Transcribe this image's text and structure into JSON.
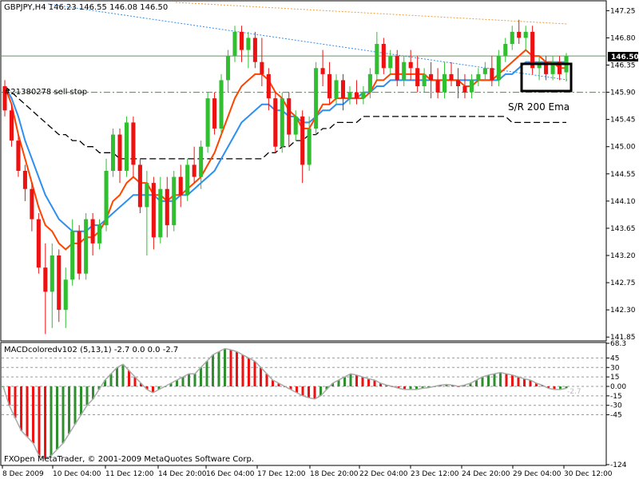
{
  "header": {
    "symbol_line": "GBPJPY,H4  146.23 146.55 146.08 146.50",
    "order_label": "#21380278 sell stop"
  },
  "annotation": {
    "text": "S/R 200 Ema"
  },
  "footer": {
    "copyright": "FXOpen MetaTrader, © 2001-2009 MetaQuotes Software Corp."
  },
  "colors": {
    "bull": "#2fbf2f",
    "bear": "#ee1111",
    "ema_orange": "#ff4400",
    "ema_blue": "#2f8fef",
    "ema_black": "#000000",
    "sell_stop_line": "#22aa22",
    "price_line": "#6b8e6b",
    "dotted_blue": "#2f8fef",
    "dotted_orange": "#e8a040"
  },
  "chart_data": [
    {
      "type": "candlestick",
      "title": "GBPJPY,H4",
      "ohlc_last": {
        "open": 146.23,
        "high": 146.55,
        "low": 146.08,
        "close": 146.5
      },
      "current_price": 146.5,
      "sell_stop_price": 145.9,
      "ylim": [
        141.8,
        147.4
      ],
      "yticks": [
        "147.25",
        "146.80",
        "146.35",
        "145.90",
        "145.45",
        "145.00",
        "144.55",
        "144.10",
        "143.65",
        "143.20",
        "142.75",
        "142.30",
        "141.85"
      ],
      "current_price_label": "146.50",
      "xticks": [
        "8 Dec 2009",
        "10 Dec 04:00",
        "11 Dec 12:00",
        "14 Dec 20:00",
        "16 Dec 04:00",
        "17 Dec 12:00",
        "18 Dec 20:00",
        "22 Dec 04:00",
        "23 Dec 12:00",
        "24 Dec 20:00",
        "29 Dec 04:00",
        "30 Dec 12:00"
      ],
      "candles": [
        {
          "o": 146.0,
          "h": 146.1,
          "l": 145.5,
          "c": 145.6
        },
        {
          "o": 145.6,
          "h": 145.7,
          "l": 145.0,
          "c": 145.1
        },
        {
          "o": 145.1,
          "h": 145.2,
          "l": 144.5,
          "c": 144.6
        },
        {
          "o": 144.6,
          "h": 144.7,
          "l": 144.1,
          "c": 144.3
        },
        {
          "o": 144.3,
          "h": 144.4,
          "l": 143.6,
          "c": 143.8
        },
        {
          "o": 143.8,
          "h": 143.9,
          "l": 142.9,
          "c": 143.0
        },
        {
          "o": 143.0,
          "h": 143.4,
          "l": 141.9,
          "c": 142.6
        },
        {
          "o": 142.6,
          "h": 143.4,
          "l": 142.0,
          "c": 143.2
        },
        {
          "o": 143.2,
          "h": 143.3,
          "l": 142.1,
          "c": 142.3
        },
        {
          "o": 142.3,
          "h": 143.0,
          "l": 142.0,
          "c": 142.8
        },
        {
          "o": 142.8,
          "h": 143.8,
          "l": 142.7,
          "c": 143.6
        },
        {
          "o": 143.6,
          "h": 143.7,
          "l": 142.8,
          "c": 142.9
        },
        {
          "o": 142.9,
          "h": 143.9,
          "l": 142.8,
          "c": 143.8
        },
        {
          "o": 143.8,
          "h": 143.9,
          "l": 143.2,
          "c": 143.4
        },
        {
          "o": 143.4,
          "h": 143.8,
          "l": 143.3,
          "c": 143.7
        },
        {
          "o": 143.7,
          "h": 144.8,
          "l": 143.6,
          "c": 144.6
        },
        {
          "o": 144.6,
          "h": 145.3,
          "l": 144.5,
          "c": 145.2
        },
        {
          "o": 145.2,
          "h": 145.3,
          "l": 144.4,
          "c": 144.6
        },
        {
          "o": 144.6,
          "h": 145.5,
          "l": 144.5,
          "c": 145.4
        },
        {
          "o": 145.4,
          "h": 145.5,
          "l": 144.5,
          "c": 144.7
        },
        {
          "o": 144.7,
          "h": 144.8,
          "l": 143.9,
          "c": 144.0
        },
        {
          "o": 144.0,
          "h": 144.6,
          "l": 143.2,
          "c": 144.4
        },
        {
          "o": 144.4,
          "h": 144.5,
          "l": 143.3,
          "c": 143.5
        },
        {
          "o": 143.5,
          "h": 144.5,
          "l": 143.4,
          "c": 144.3
        },
        {
          "o": 144.3,
          "h": 144.5,
          "l": 143.5,
          "c": 143.7
        },
        {
          "o": 143.7,
          "h": 144.6,
          "l": 143.6,
          "c": 144.5
        },
        {
          "o": 144.5,
          "h": 144.7,
          "l": 144.0,
          "c": 144.2
        },
        {
          "o": 144.2,
          "h": 144.8,
          "l": 144.1,
          "c": 144.7
        },
        {
          "o": 144.7,
          "h": 145.0,
          "l": 144.4,
          "c": 144.5
        },
        {
          "o": 144.5,
          "h": 145.1,
          "l": 144.3,
          "c": 145.0
        },
        {
          "o": 145.0,
          "h": 145.9,
          "l": 144.9,
          "c": 145.8
        },
        {
          "o": 145.8,
          "h": 145.9,
          "l": 145.2,
          "c": 145.3
        },
        {
          "o": 145.3,
          "h": 146.2,
          "l": 145.2,
          "c": 146.1
        },
        {
          "o": 146.1,
          "h": 146.6,
          "l": 145.9,
          "c": 146.5
        },
        {
          "o": 146.5,
          "h": 147.0,
          "l": 146.4,
          "c": 146.9
        },
        {
          "o": 146.9,
          "h": 147.0,
          "l": 146.4,
          "c": 146.6
        },
        {
          "o": 146.6,
          "h": 146.9,
          "l": 146.3,
          "c": 146.8
        },
        {
          "o": 146.8,
          "h": 146.9,
          "l": 146.3,
          "c": 146.4
        },
        {
          "o": 146.4,
          "h": 146.8,
          "l": 146.0,
          "c": 146.2
        },
        {
          "o": 146.2,
          "h": 146.3,
          "l": 145.6,
          "c": 145.8
        },
        {
          "o": 145.8,
          "h": 145.9,
          "l": 144.9,
          "c": 145.0
        },
        {
          "o": 145.0,
          "h": 145.9,
          "l": 144.9,
          "c": 145.8
        },
        {
          "o": 145.8,
          "h": 145.9,
          "l": 145.0,
          "c": 145.2
        },
        {
          "o": 145.2,
          "h": 145.6,
          "l": 145.1,
          "c": 145.5
        },
        {
          "o": 145.5,
          "h": 145.6,
          "l": 144.4,
          "c": 144.7
        },
        {
          "o": 144.7,
          "h": 145.5,
          "l": 144.6,
          "c": 145.3
        },
        {
          "o": 145.3,
          "h": 146.4,
          "l": 145.2,
          "c": 146.3
        },
        {
          "o": 146.3,
          "h": 146.6,
          "l": 146.0,
          "c": 146.2
        },
        {
          "o": 146.2,
          "h": 146.4,
          "l": 145.7,
          "c": 145.8
        },
        {
          "o": 145.8,
          "h": 146.2,
          "l": 145.7,
          "c": 146.1
        },
        {
          "o": 146.1,
          "h": 146.2,
          "l": 145.6,
          "c": 145.8
        },
        {
          "o": 145.8,
          "h": 146.0,
          "l": 145.7,
          "c": 145.9
        },
        {
          "o": 145.9,
          "h": 146.1,
          "l": 145.7,
          "c": 145.8
        },
        {
          "o": 145.8,
          "h": 146.0,
          "l": 145.7,
          "c": 145.9
        },
        {
          "o": 145.9,
          "h": 146.3,
          "l": 145.8,
          "c": 146.2
        },
        {
          "o": 146.2,
          "h": 146.9,
          "l": 146.1,
          "c": 146.7
        },
        {
          "o": 146.7,
          "h": 146.8,
          "l": 146.2,
          "c": 146.3
        },
        {
          "o": 146.3,
          "h": 146.6,
          "l": 146.2,
          "c": 146.5
        },
        {
          "o": 146.5,
          "h": 146.6,
          "l": 146.0,
          "c": 146.1
        },
        {
          "o": 146.1,
          "h": 146.5,
          "l": 146.0,
          "c": 146.4
        },
        {
          "o": 146.4,
          "h": 146.6,
          "l": 146.1,
          "c": 146.3
        },
        {
          "o": 146.3,
          "h": 146.5,
          "l": 145.9,
          "c": 146.0
        },
        {
          "o": 146.0,
          "h": 146.3,
          "l": 145.9,
          "c": 146.2
        },
        {
          "o": 146.2,
          "h": 146.4,
          "l": 145.8,
          "c": 146.1
        },
        {
          "o": 146.1,
          "h": 146.3,
          "l": 145.8,
          "c": 145.9
        },
        {
          "o": 145.9,
          "h": 146.4,
          "l": 145.8,
          "c": 146.2
        },
        {
          "o": 146.2,
          "h": 146.4,
          "l": 146.0,
          "c": 146.1
        },
        {
          "o": 146.1,
          "h": 146.3,
          "l": 145.8,
          "c": 146.0
        },
        {
          "o": 146.0,
          "h": 146.2,
          "l": 145.8,
          "c": 145.9
        },
        {
          "o": 145.9,
          "h": 146.2,
          "l": 145.8,
          "c": 146.1
        },
        {
          "o": 146.1,
          "h": 146.3,
          "l": 146.0,
          "c": 146.2
        },
        {
          "o": 146.2,
          "h": 146.4,
          "l": 146.1,
          "c": 146.3
        },
        {
          "o": 146.3,
          "h": 146.5,
          "l": 146.0,
          "c": 146.1
        },
        {
          "o": 146.1,
          "h": 146.6,
          "l": 146.0,
          "c": 146.5
        },
        {
          "o": 146.5,
          "h": 146.8,
          "l": 146.4,
          "c": 146.7
        },
        {
          "o": 146.7,
          "h": 147.0,
          "l": 146.6,
          "c": 146.9
        },
        {
          "o": 146.9,
          "h": 147.1,
          "l": 146.7,
          "c": 146.8
        },
        {
          "o": 146.8,
          "h": 147.0,
          "l": 146.6,
          "c": 146.9
        },
        {
          "o": 146.9,
          "h": 147.0,
          "l": 146.2,
          "c": 146.3
        },
        {
          "o": 146.3,
          "h": 146.5,
          "l": 146.1,
          "c": 146.4
        },
        {
          "o": 146.4,
          "h": 146.5,
          "l": 146.1,
          "c": 146.2
        },
        {
          "o": 146.2,
          "h": 146.5,
          "l": 146.1,
          "c": 146.4
        },
        {
          "o": 146.4,
          "h": 146.5,
          "l": 146.1,
          "c": 146.2
        },
        {
          "o": 146.23,
          "h": 146.55,
          "l": 146.08,
          "c": 146.5
        }
      ],
      "ema_orange": [
        146.0,
        145.7,
        145.2,
        144.8,
        144.4,
        144.0,
        143.7,
        143.6,
        143.4,
        143.3,
        143.4,
        143.4,
        143.5,
        143.5,
        143.6,
        143.8,
        144.1,
        144.2,
        144.4,
        144.5,
        144.4,
        144.4,
        144.2,
        144.2,
        144.1,
        144.2,
        144.2,
        144.3,
        144.4,
        144.5,
        144.7,
        144.9,
        145.2,
        145.5,
        145.8,
        146.0,
        146.1,
        146.2,
        146.2,
        146.1,
        145.9,
        145.8,
        145.6,
        145.5,
        145.3,
        145.3,
        145.5,
        145.7,
        145.7,
        145.8,
        145.8,
        145.8,
        145.8,
        145.8,
        145.9,
        146.1,
        146.1,
        146.2,
        146.2,
        146.2,
        146.2,
        146.2,
        146.2,
        146.1,
        146.1,
        146.1,
        146.1,
        146.1,
        146.0,
        146.0,
        146.1,
        146.1,
        146.1,
        146.2,
        146.3,
        146.4,
        146.5,
        146.6,
        146.5,
        146.5,
        146.4,
        146.4,
        146.3,
        146.3
      ],
      "ema_blue": [
        146.0,
        145.8,
        145.5,
        145.1,
        144.8,
        144.5,
        144.2,
        144.0,
        143.8,
        143.7,
        143.6,
        143.6,
        143.6,
        143.7,
        143.7,
        143.8,
        143.9,
        144.0,
        144.1,
        144.2,
        144.2,
        144.2,
        144.2,
        144.1,
        144.1,
        144.1,
        144.2,
        144.2,
        144.3,
        144.4,
        144.5,
        144.6,
        144.8,
        145.0,
        145.2,
        145.4,
        145.5,
        145.6,
        145.7,
        145.7,
        145.6,
        145.6,
        145.5,
        145.5,
        145.4,
        145.4,
        145.5,
        145.6,
        145.6,
        145.7,
        145.7,
        145.8,
        145.8,
        145.9,
        145.9,
        146.0,
        146.0,
        146.1,
        146.1,
        146.1,
        146.1,
        146.1,
        146.1,
        146.1,
        146.1,
        146.1,
        146.1,
        146.1,
        146.1,
        146.1,
        146.1,
        146.1,
        146.1,
        146.1,
        146.2,
        146.2,
        146.3,
        146.4,
        146.4,
        146.4,
        146.4,
        146.4,
        146.4,
        146.4
      ],
      "ema_black_200": [
        146.0,
        145.9,
        145.8,
        145.7,
        145.6,
        145.5,
        145.4,
        145.3,
        145.2,
        145.2,
        145.1,
        145.1,
        145.0,
        145.0,
        144.9,
        144.9,
        144.9,
        144.8,
        144.8,
        144.8,
        144.8,
        144.8,
        144.8,
        144.8,
        144.8,
        144.8,
        144.8,
        144.8,
        144.8,
        144.8,
        144.8,
        144.8,
        144.8,
        144.8,
        144.8,
        144.8,
        144.8,
        144.8,
        144.8,
        144.9,
        144.9,
        145.0,
        145.0,
        145.1,
        145.1,
        145.2,
        145.2,
        145.3,
        145.3,
        145.4,
        145.4,
        145.4,
        145.4,
        145.5,
        145.5,
        145.5,
        145.5,
        145.5,
        145.5,
        145.5,
        145.5,
        145.5,
        145.5,
        145.5,
        145.5,
        145.5,
        145.5,
        145.5,
        145.5,
        145.5,
        145.5,
        145.5,
        145.5,
        145.5,
        145.5,
        145.4,
        145.4,
        145.4,
        145.4,
        145.4,
        145.4,
        145.4,
        145.4,
        145.4
      ]
    },
    {
      "type": "histogram",
      "title": "MACDcoloredv102 (5,13,1) -2.7 0.0 0.0 -2.7",
      "ylim": [
        -124,
        68.3
      ],
      "yticks": [
        "68.3",
        "45",
        "30",
        "15",
        "0.00",
        "-15",
        "-30",
        "-45",
        "-124"
      ],
      "last_value_label": "-2.7",
      "values": [
        0,
        -30,
        -50,
        -70,
        -80,
        -90,
        -110,
        -115,
        -110,
        -100,
        -90,
        -75,
        -60,
        -45,
        -30,
        -20,
        -5,
        10,
        20,
        30,
        35,
        25,
        15,
        5,
        -5,
        -10,
        -5,
        0,
        5,
        10,
        15,
        20,
        20,
        30,
        40,
        50,
        55,
        60,
        58,
        55,
        50,
        45,
        40,
        30,
        20,
        10,
        5,
        0,
        -5,
        -10,
        -15,
        -18,
        -20,
        -15,
        -5,
        5,
        10,
        15,
        20,
        18,
        15,
        12,
        10,
        5,
        2,
        0,
        -3,
        -5,
        -5,
        -5,
        -3,
        -2,
        0,
        2,
        3,
        2,
        0,
        2,
        5,
        10,
        15,
        18,
        20,
        22,
        20,
        18,
        15,
        12,
        10,
        5,
        2,
        -3,
        -5,
        -5,
        -3
      ],
      "colors_by_direction": {
        "up": "#2f8f2f",
        "down": "#ee1111"
      }
    }
  ]
}
